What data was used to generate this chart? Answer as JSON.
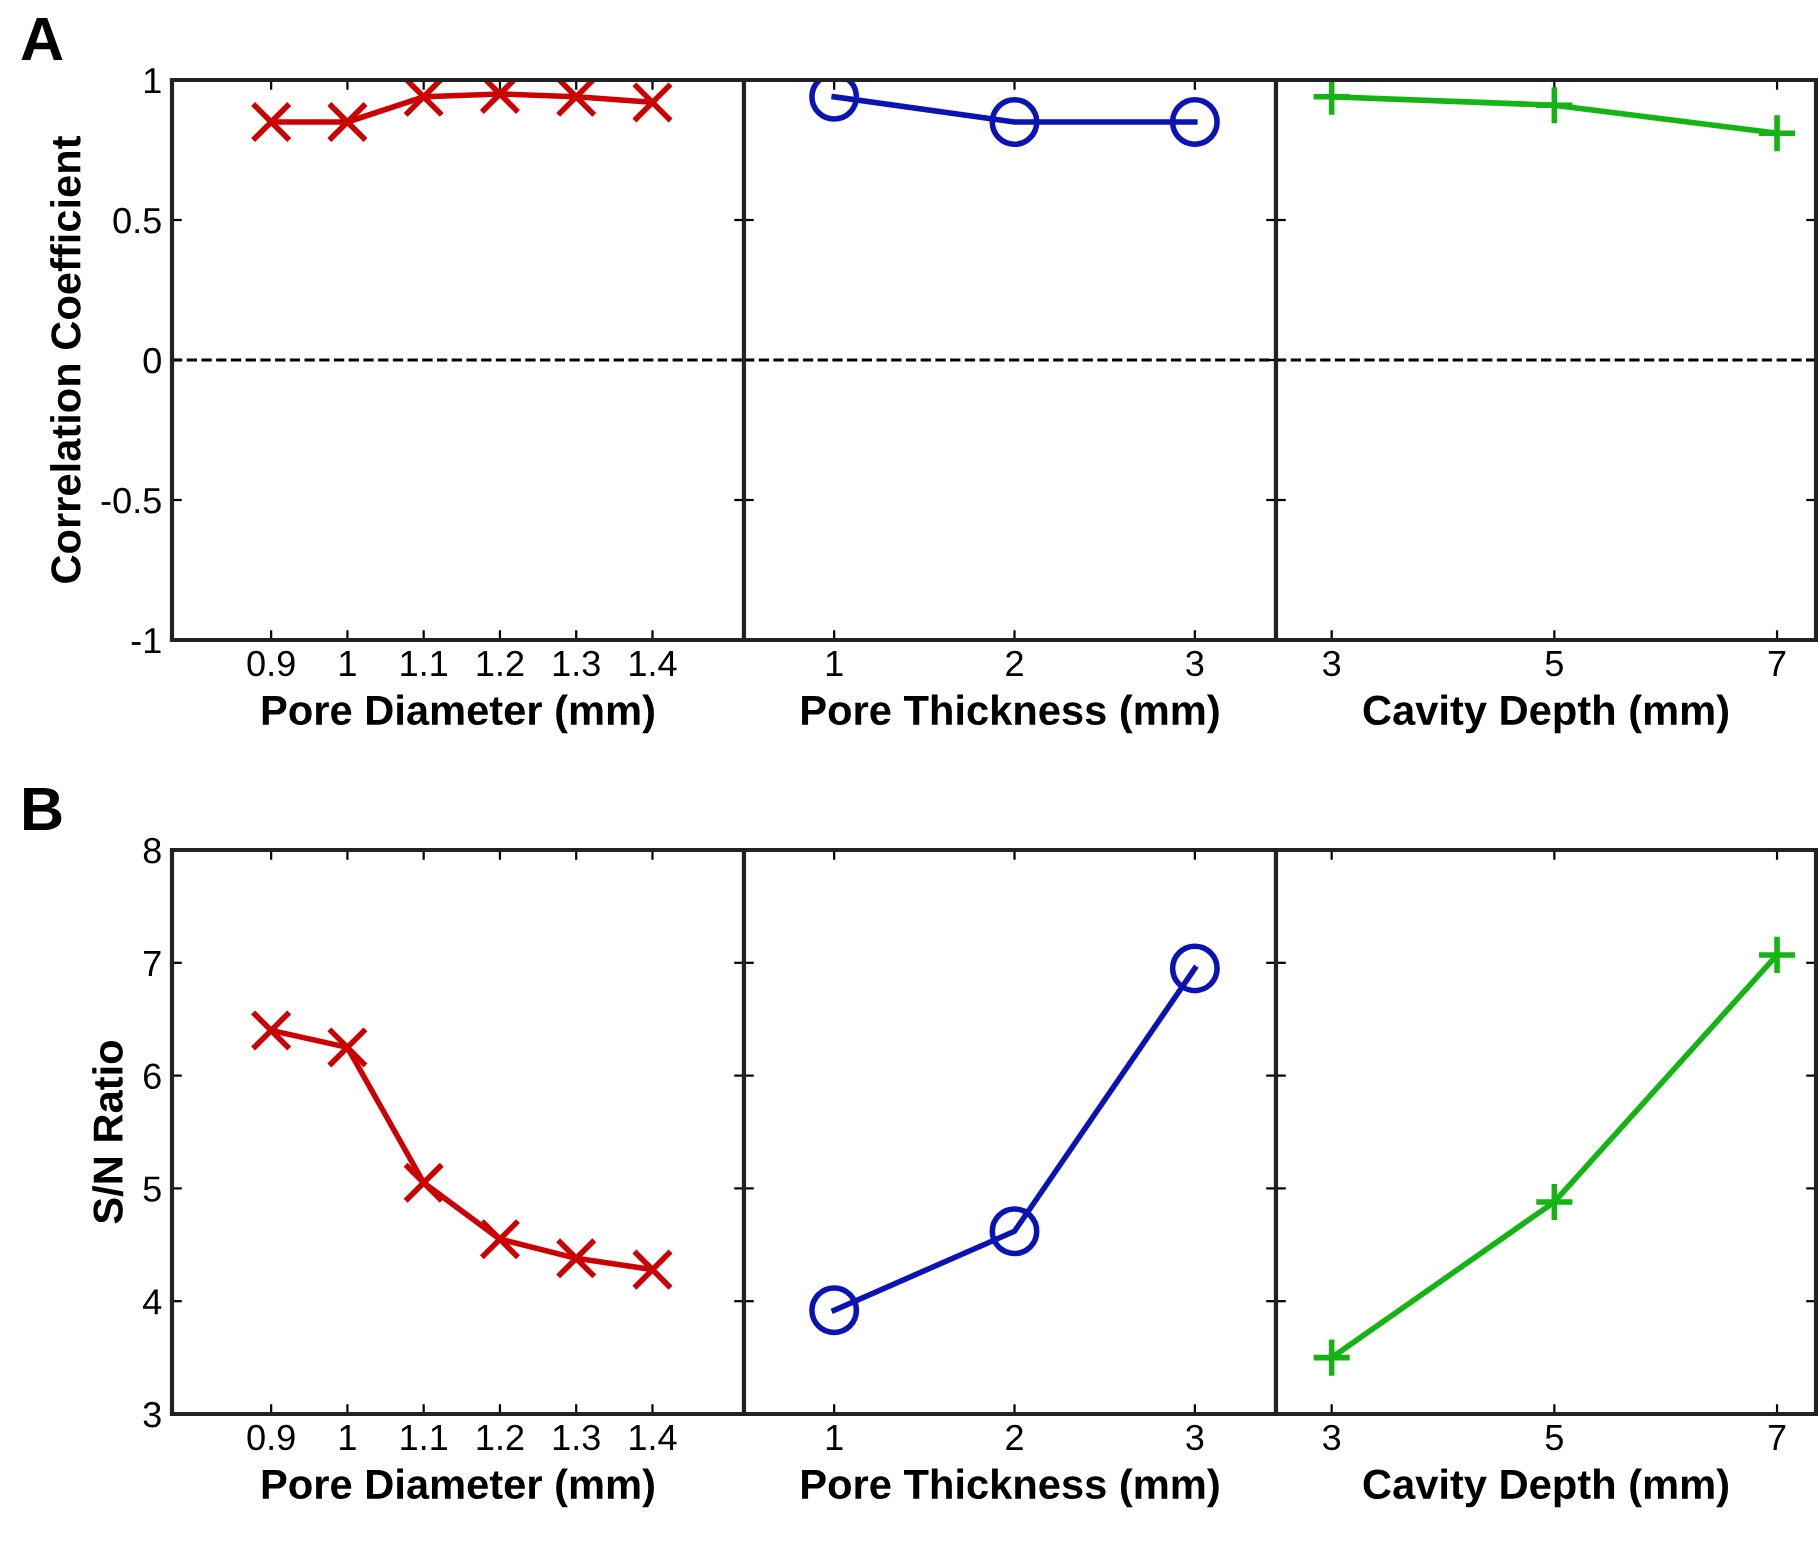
{
  "chart_data": [
    {
      "type": "line",
      "xlabel": "Pore Diameter (mm)",
      "ylabel": "Correlation Coefficient",
      "annotations": [
        "A"
      ],
      "x": [
        0.9,
        1.0,
        1.1,
        1.2,
        1.3,
        1.4
      ],
      "xlim": [
        0.77,
        1.52
      ],
      "xticks": [
        0.9,
        1,
        1.1,
        1.2,
        1.3,
        1.4
      ],
      "ylim": [
        -1,
        1
      ],
      "yticks": [
        -1,
        -0.5,
        0,
        0.5,
        1
      ],
      "marker": "cross",
      "ref_lines": [
        {
          "axis": "y",
          "value": 0,
          "line_style": "dashed",
          "color": "#000000"
        }
      ],
      "series": [
        {
          "color": "#cc0000",
          "values": [
            0.85,
            0.85,
            0.94,
            0.95,
            0.94,
            0.92
          ]
        }
      ]
    },
    {
      "type": "line",
      "xlabel": "Pore Thickness (mm)",
      "x": [
        1,
        2,
        3
      ],
      "xlim": [
        0.5,
        3.45
      ],
      "xticks": [
        1,
        2,
        3
      ],
      "ylim": [
        -1,
        1
      ],
      "yticks": [
        -1,
        -0.5,
        0,
        0.5,
        1
      ],
      "tick_labels": "x",
      "marker": "circle",
      "ref_lines": [
        {
          "axis": "y",
          "value": 0,
          "line_style": "dashed",
          "color": "#000000"
        }
      ],
      "series": [
        {
          "color": "#0a14b4",
          "values": [
            0.94,
            0.85,
            0.85
          ]
        }
      ]
    },
    {
      "type": "line",
      "xlabel": "Cavity Depth (mm)",
      "x": [
        3,
        5,
        7
      ],
      "xlim": [
        2.5,
        7.35
      ],
      "xticks": [
        3,
        5,
        7
      ],
      "ylim": [
        -1,
        1
      ],
      "yticks": [
        -1,
        -0.5,
        0,
        0.5,
        1
      ],
      "tick_labels": "x",
      "marker": "plus",
      "ref_lines": [
        {
          "axis": "y",
          "value": 0,
          "line_style": "dashed",
          "color": "#000000"
        }
      ],
      "series": [
        {
          "color": "#14b414",
          "values": [
            0.94,
            0.91,
            0.81
          ]
        }
      ]
    },
    {
      "type": "line",
      "xlabel": "Pore Diameter (mm)",
      "ylabel": "S/N Ratio",
      "annotations": [
        "B"
      ],
      "x": [
        0.9,
        1.0,
        1.1,
        1.2,
        1.3,
        1.4
      ],
      "xlim": [
        0.77,
        1.52
      ],
      "xticks": [
        0.9,
        1,
        1.1,
        1.2,
        1.3,
        1.4
      ],
      "ylim": [
        3,
        8
      ],
      "yticks": [
        3,
        4,
        5,
        6,
        7,
        8
      ],
      "marker": "cross",
      "series": [
        {
          "color": "#cc0000",
          "values": [
            6.4,
            6.25,
            5.05,
            4.55,
            4.38,
            4.28
          ]
        }
      ]
    },
    {
      "type": "line",
      "xlabel": "Pore Thickness (mm)",
      "x": [
        1,
        2,
        3
      ],
      "xlim": [
        0.5,
        3.45
      ],
      "xticks": [
        1,
        2,
        3
      ],
      "ylim": [
        3,
        8
      ],
      "yticks": [
        3,
        4,
        5,
        6,
        7,
        8
      ],
      "tick_labels": "x",
      "marker": "circle",
      "series": [
        {
          "color": "#0a14b4",
          "values": [
            3.92,
            4.62,
            6.95
          ]
        }
      ]
    },
    {
      "type": "line",
      "xlabel": "Cavity Depth (mm)",
      "x": [
        3,
        5,
        7
      ],
      "xlim": [
        2.5,
        7.35
      ],
      "xticks": [
        3,
        5,
        7
      ],
      "ylim": [
        3,
        8
      ],
      "yticks": [
        3,
        4,
        5,
        6,
        7,
        8
      ],
      "tick_labels": "x",
      "marker": "plus",
      "series": [
        {
          "color": "#14b414",
          "values": [
            3.5,
            4.88,
            7.07
          ]
        }
      ]
    }
  ]
}
